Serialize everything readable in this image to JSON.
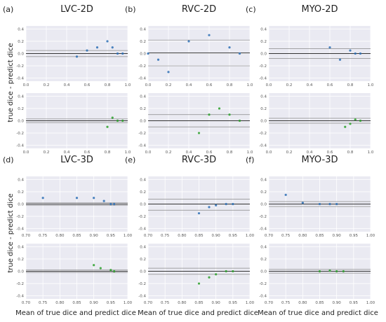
{
  "figure": {
    "ylabel": "true dice - predict dice",
    "xlabel": "Mean of true dice and predict dice"
  },
  "colors": {
    "blue": "#2d6fb5",
    "green": "#2ca02c",
    "panel_bg": "#eaeaf2",
    "grid": "#ffffff",
    "mean_line": "#333333",
    "limit_line": "#888888"
  },
  "chart_data": [
    {
      "id": "lvc2d-top",
      "type": "scatter",
      "tag": "(a)",
      "title": "LVC-2D",
      "series": [
        {
          "color": "blue",
          "x": [
            0.5,
            0.6,
            0.7,
            0.8,
            0.85,
            0.9,
            0.95
          ],
          "y": [
            -0.05,
            0.05,
            0.1,
            0.2,
            0.1,
            0.0,
            0.0
          ]
        }
      ],
      "xlim": [
        0,
        1
      ],
      "xticks": [
        0.0,
        0.2,
        0.4,
        0.6,
        0.8,
        1.0
      ],
      "ylim": [
        -0.45,
        0.45
      ],
      "yticks": [
        0.4,
        0.2,
        0.0,
        -0.2,
        -0.4
      ],
      "hlines": {
        "mean": 0.0,
        "limits": [
          0.05,
          -0.05
        ]
      },
      "grid": true
    },
    {
      "id": "lvc2d-bot",
      "type": "scatter",
      "series": [
        {
          "color": "green",
          "x": [
            0.8,
            0.85,
            0.9,
            0.95
          ],
          "y": [
            -0.1,
            0.05,
            0.0,
            0.0
          ]
        }
      ],
      "xlim": [
        0,
        1
      ],
      "xticks": [
        0.0,
        0.2,
        0.4,
        0.6,
        0.8,
        1.0
      ],
      "ylim": [
        -0.45,
        0.45
      ],
      "yticks": [
        0.4,
        0.2,
        0.0,
        -0.2,
        -0.4
      ],
      "hlines": {
        "mean": 0.0,
        "limits": [
          0.03,
          -0.03
        ]
      },
      "grid": true
    },
    {
      "id": "rvc2d-top",
      "type": "scatter",
      "tag": "(b)",
      "title": "RVC-2D",
      "series": [
        {
          "color": "blue",
          "x": [
            0.0,
            0.1,
            0.2,
            0.4,
            0.6,
            0.8,
            0.9
          ],
          "y": [
            0.0,
            -0.1,
            -0.3,
            0.2,
            0.3,
            0.1,
            0.0
          ]
        }
      ],
      "xlim": [
        0,
        1
      ],
      "xticks": [
        0.0,
        0.2,
        0.4,
        0.6,
        0.8,
        1.0
      ],
      "ylim": [
        -0.45,
        0.45
      ],
      "yticks": [
        0.4,
        0.2,
        0.0,
        -0.2,
        -0.4
      ],
      "hlines": {
        "mean": 0.01,
        "limits": [
          0.22,
          -0.2
        ]
      },
      "grid": true
    },
    {
      "id": "rvc2d-bot",
      "type": "scatter",
      "series": [
        {
          "color": "green",
          "x": [
            0.5,
            0.6,
            0.7,
            0.8,
            0.9
          ],
          "y": [
            -0.2,
            0.1,
            0.2,
            0.1,
            0.0
          ]
        }
      ],
      "xlim": [
        0,
        1
      ],
      "xticks": [
        0.0,
        0.2,
        0.4,
        0.6,
        0.8,
        1.0
      ],
      "ylim": [
        -0.45,
        0.45
      ],
      "yticks": [
        0.4,
        0.2,
        0.0,
        -0.2,
        -0.4
      ],
      "hlines": {
        "mean": 0.0,
        "limits": [
          0.1,
          -0.1
        ]
      },
      "grid": true
    },
    {
      "id": "myo2d-top",
      "type": "scatter",
      "tag": "(c)",
      "title": "MYO-2D",
      "series": [
        {
          "color": "blue",
          "x": [
            0.6,
            0.7,
            0.8,
            0.85,
            0.9
          ],
          "y": [
            0.1,
            -0.1,
            0.05,
            0.0,
            0.0
          ]
        }
      ],
      "xlim": [
        0,
        1
      ],
      "xticks": [
        0.0,
        0.2,
        0.4,
        0.6,
        0.8,
        1.0
      ],
      "ylim": [
        -0.45,
        0.45
      ],
      "yticks": [
        0.4,
        0.2,
        0.0,
        -0.2,
        -0.4
      ],
      "hlines": {
        "mean": 0.0,
        "limits": [
          0.08,
          -0.08
        ]
      },
      "grid": true
    },
    {
      "id": "myo2d-bot",
      "type": "scatter",
      "series": [
        {
          "color": "green",
          "x": [
            0.75,
            0.8,
            0.85,
            0.9
          ],
          "y": [
            -0.1,
            -0.05,
            0.02,
            0.0
          ]
        }
      ],
      "xlim": [
        0,
        1
      ],
      "xticks": [
        0.0,
        0.2,
        0.4,
        0.6,
        0.8,
        1.0
      ],
      "ylim": [
        -0.45,
        0.45
      ],
      "yticks": [
        0.4,
        0.2,
        0.0,
        -0.2,
        -0.4
      ],
      "hlines": {
        "mean": 0.0,
        "limits": [
          0.04,
          -0.04
        ]
      },
      "grid": true
    },
    {
      "id": "lvc3d-top",
      "type": "scatter",
      "tag": "(d)",
      "title": "LVC-3D",
      "series": [
        {
          "color": "blue",
          "x": [
            0.75,
            0.85,
            0.9,
            0.93,
            0.95,
            0.96
          ],
          "y": [
            0.1,
            0.1,
            0.1,
            0.05,
            0.0,
            0.0
          ]
        }
      ],
      "xlim": [
        0.7,
        1.0
      ],
      "xticks": [
        0.7,
        0.75,
        0.8,
        0.85,
        0.9,
        0.95,
        1.0
      ],
      "ylim": [
        -0.45,
        0.45
      ],
      "yticks": [
        0.4,
        0.2,
        0.0,
        -0.2,
        -0.4
      ],
      "hlines": {
        "mean": 0.0,
        "limits": [
          0.02,
          -0.02
        ]
      },
      "grid": true
    },
    {
      "id": "lvc3d-bot",
      "type": "scatter",
      "series": [
        {
          "color": "green",
          "x": [
            0.9,
            0.92,
            0.95,
            0.96
          ],
          "y": [
            0.1,
            0.05,
            0.02,
            0.0
          ]
        }
      ],
      "xlim": [
        0.7,
        1.0
      ],
      "xticks": [
        0.7,
        0.75,
        0.8,
        0.85,
        0.9,
        0.95,
        1.0
      ],
      "ylim": [
        -0.45,
        0.45
      ],
      "yticks": [
        0.4,
        0.2,
        0.0,
        -0.2,
        -0.4
      ],
      "hlines": {
        "mean": 0.0,
        "limits": [
          0.02,
          -0.02
        ]
      },
      "grid": true
    },
    {
      "id": "rvc3d-top",
      "type": "scatter",
      "tag": "(e)",
      "title": "RVC-3D",
      "series": [
        {
          "color": "blue",
          "x": [
            0.85,
            0.88,
            0.9,
            0.93,
            0.95
          ],
          "y": [
            -0.15,
            -0.05,
            -0.02,
            0.0,
            0.0
          ]
        }
      ],
      "xlim": [
        0.7,
        1.0
      ],
      "xticks": [
        0.7,
        0.75,
        0.8,
        0.85,
        0.9,
        0.95,
        1.0
      ],
      "ylim": [
        -0.45,
        0.45
      ],
      "yticks": [
        0.4,
        0.2,
        0.0,
        -0.2,
        -0.4
      ],
      "hlines": {
        "mean": 0.0,
        "limits": [
          0.08,
          -0.1
        ]
      },
      "grid": true
    },
    {
      "id": "rvc3d-bot",
      "type": "scatter",
      "series": [
        {
          "color": "green",
          "x": [
            0.85,
            0.88,
            0.9,
            0.93,
            0.95
          ],
          "y": [
            -0.2,
            -0.1,
            -0.05,
            0.0,
            0.0
          ]
        }
      ],
      "xlim": [
        0.7,
        1.0
      ],
      "xticks": [
        0.7,
        0.75,
        0.8,
        0.85,
        0.9,
        0.95,
        1.0
      ],
      "ylim": [
        -0.45,
        0.45
      ],
      "yticks": [
        0.4,
        0.2,
        0.0,
        -0.2,
        -0.4
      ],
      "hlines": {
        "mean": 0.0,
        "limits": [
          0.05,
          -0.05
        ]
      },
      "grid": true
    },
    {
      "id": "myo3d-top",
      "type": "scatter",
      "tag": "(f)",
      "title": "MYO-3D",
      "series": [
        {
          "color": "blue",
          "x": [
            0.75,
            0.8,
            0.85,
            0.88,
            0.9
          ],
          "y": [
            0.15,
            0.02,
            0.0,
            0.0,
            0.0
          ]
        }
      ],
      "xlim": [
        0.7,
        1.0
      ],
      "xticks": [
        0.7,
        0.75,
        0.8,
        0.85,
        0.9,
        0.95,
        1.0
      ],
      "ylim": [
        -0.45,
        0.45
      ],
      "yticks": [
        0.4,
        0.2,
        0.0,
        -0.2,
        -0.4
      ],
      "hlines": {
        "mean": 0.0,
        "limits": [
          0.04,
          -0.04
        ]
      },
      "grid": true
    },
    {
      "id": "myo3d-bot",
      "type": "scatter",
      "series": [
        {
          "color": "green",
          "x": [
            0.85,
            0.88,
            0.9,
            0.92
          ],
          "y": [
            0.0,
            0.01,
            0.0,
            0.0
          ]
        }
      ],
      "xlim": [
        0.7,
        1.0
      ],
      "xticks": [
        0.7,
        0.75,
        0.8,
        0.85,
        0.9,
        0.95,
        1.0
      ],
      "ylim": [
        -0.45,
        0.45
      ],
      "yticks": [
        0.4,
        0.2,
        0.0,
        -0.2,
        -0.4
      ],
      "hlines": {
        "mean": 0.0,
        "limits": [
          0.03,
          -0.03
        ]
      },
      "grid": true
    }
  ]
}
